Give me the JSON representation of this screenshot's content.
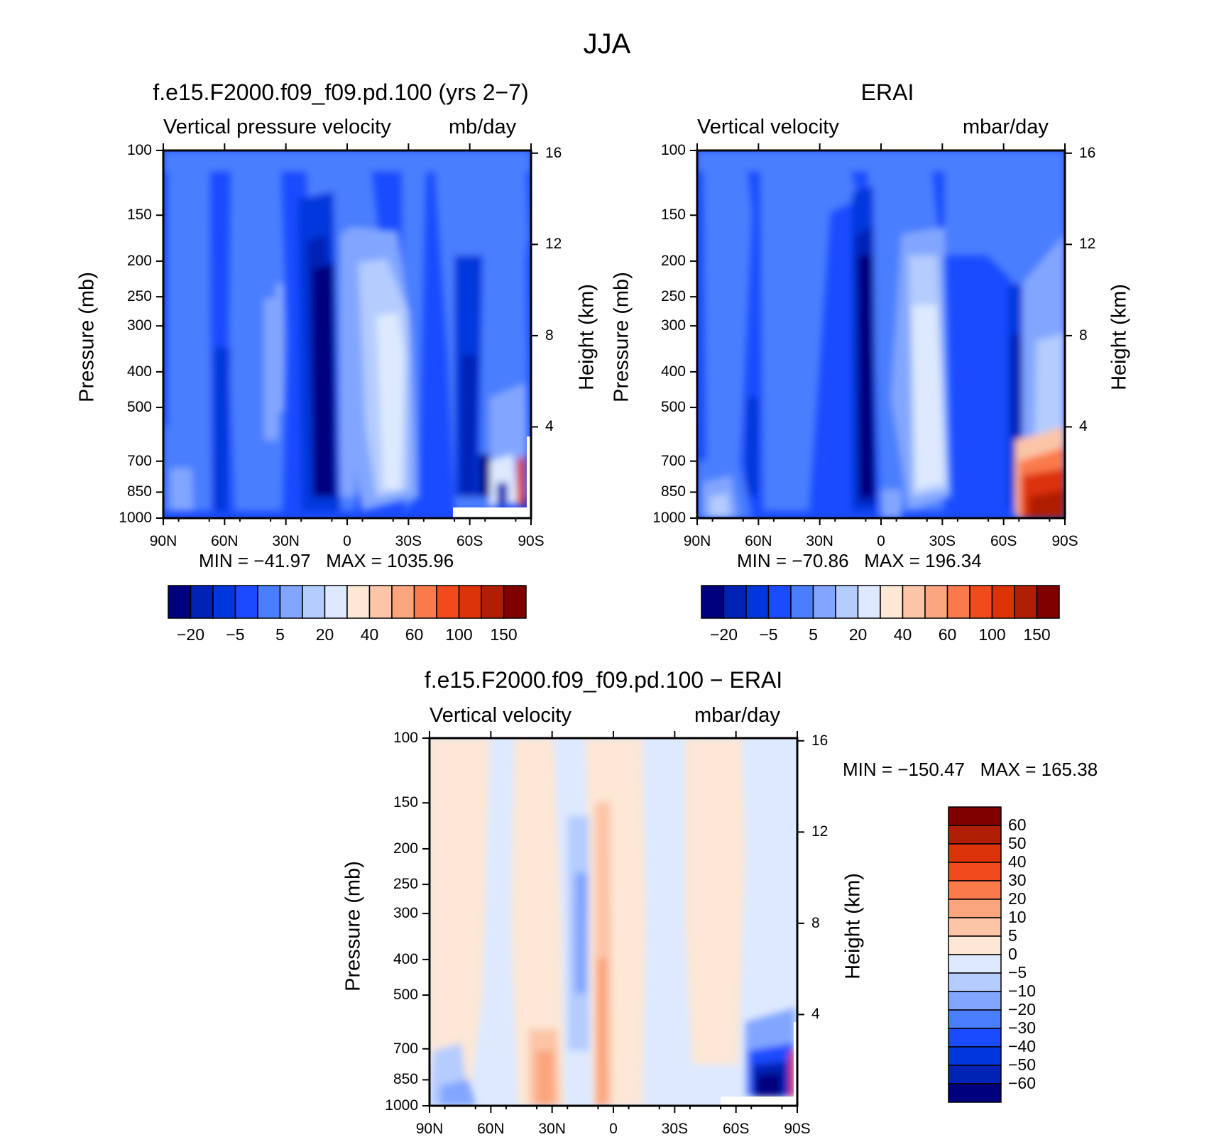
{
  "suptitle": "JJA",
  "panels": [
    {
      "title": "f.e15.F2000.f09_f09.pd.100 (yrs 2−7)",
      "left_header": "Vertical pressure velocity",
      "right_header": "mb/day",
      "ylabel": "Pressure (mb)",
      "ylabel_right": "Height (km)",
      "minmax": "MIN = −41.97   MAX = 1035.96"
    },
    {
      "title": "ERAI",
      "left_header": "Vertical velocity",
      "right_header": "mbar/day",
      "ylabel": "Pressure (mb)",
      "ylabel_right": "Height (km)",
      "minmax": "MIN = −70.86   MAX = 196.34"
    },
    {
      "title": "f.e15.F2000.f09_f09.pd.100 − ERAI",
      "left_header": "Vertical velocity",
      "right_header": "mbar/day",
      "ylabel": "Pressure (mb)",
      "ylabel_right": "Height (km)",
      "minmax": "MIN = −150.47   MAX = 165.38"
    }
  ],
  "chart_data": [
    {
      "type": "heatmap",
      "x_ticks": [
        "90N",
        "60N",
        "30N",
        "0",
        "30S",
        "60S",
        "90S"
      ],
      "y_ticks": [
        "100",
        "150",
        "200",
        "250",
        "300",
        "400",
        "500",
        "700",
        "850",
        "1000"
      ],
      "y_scale": "log",
      "ylim": [
        1000,
        100
      ],
      "y_right_ticks": [
        "16",
        "12",
        "8",
        "4"
      ],
      "colorbar_labels": [
        "−20",
        "−5",
        "5",
        "20",
        "40",
        "60",
        "100",
        "150"
      ],
      "colorbar_colors": [
        "#00007f",
        "#0023b5",
        "#0037dd",
        "#1a4bff",
        "#4a7eff",
        "#82a6ff",
        "#b4ccff",
        "#dde9ff",
        "#fde7d5",
        "#fcc5a7",
        "#fba57e",
        "#fa7a4c",
        "#f14a1c",
        "#dc3207",
        "#b01f04",
        "#800000"
      ]
    },
    {
      "type": "heatmap",
      "x_ticks": [
        "90N",
        "60N",
        "30N",
        "0",
        "30S",
        "60S",
        "90S"
      ],
      "y_ticks": [
        "100",
        "150",
        "200",
        "250",
        "300",
        "400",
        "500",
        "700",
        "850",
        "1000"
      ],
      "y_scale": "log",
      "ylim": [
        1000,
        100
      ],
      "y_right_ticks": [
        "16",
        "12",
        "8",
        "4"
      ],
      "colorbar_labels": [
        "−20",
        "−5",
        "5",
        "20",
        "40",
        "60",
        "100",
        "150"
      ],
      "colorbar_colors": [
        "#00007f",
        "#0023b5",
        "#0037dd",
        "#1a4bff",
        "#4a7eff",
        "#82a6ff",
        "#b4ccff",
        "#dde9ff",
        "#fde7d5",
        "#fcc5a7",
        "#fba57e",
        "#fa7a4c",
        "#f14a1c",
        "#dc3207",
        "#b01f04",
        "#800000"
      ]
    },
    {
      "type": "heatmap",
      "x_ticks": [
        "90N",
        "60N",
        "30N",
        "0",
        "30S",
        "60S",
        "90S"
      ],
      "y_ticks": [
        "100",
        "150",
        "200",
        "250",
        "300",
        "400",
        "500",
        "700",
        "850",
        "1000"
      ],
      "y_scale": "log",
      "ylim": [
        1000,
        100
      ],
      "y_right_ticks": [
        "16",
        "12",
        "8",
        "4"
      ],
      "colorbar_labels": [
        "60",
        "50",
        "40",
        "30",
        "20",
        "10",
        "5",
        "0",
        "−5",
        "−10",
        "−20",
        "−30",
        "−40",
        "−50",
        "−60"
      ],
      "colorbar_colors": [
        "#800000",
        "#b01f04",
        "#dc3207",
        "#f14a1c",
        "#fa7a4c",
        "#fba57e",
        "#fcc5a7",
        "#fde7d5",
        "#dde9ff",
        "#b4ccff",
        "#82a6ff",
        "#4a7eff",
        "#1a4bff",
        "#0037dd",
        "#0023b5",
        "#00007f"
      ]
    }
  ]
}
